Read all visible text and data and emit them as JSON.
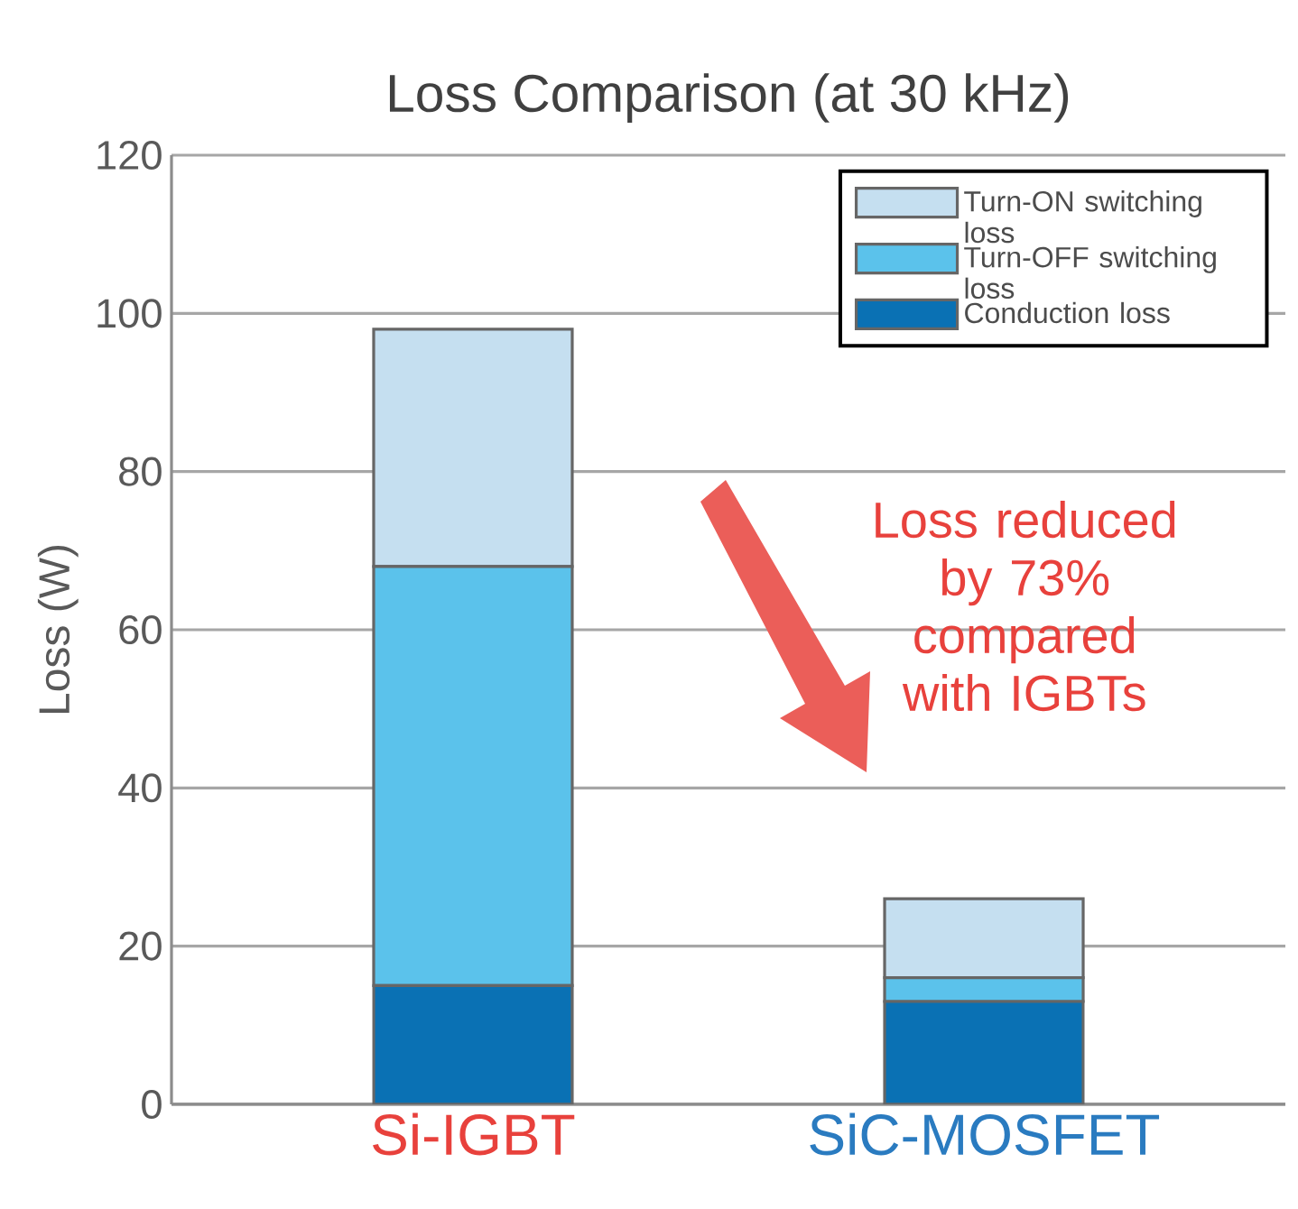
{
  "chart_data": {
    "type": "bar",
    "title": "Loss Comparison (at 30 kHz)",
    "ylabel": "Loss (W)",
    "categories": [
      "Si-IGBT",
      "SiC-MOSFET"
    ],
    "stacked": true,
    "series": [
      {
        "name": "Conduction loss",
        "color": "#0a71b4",
        "values": [
          15,
          13
        ]
      },
      {
        "name": "Turn-OFF switching loss",
        "color": "#5bc2eb",
        "values": [
          53,
          3
        ]
      },
      {
        "name": "Turn-ON switching loss",
        "color": "#c5dff0",
        "values": [
          30,
          10
        ]
      }
    ],
    "ylim": [
      0,
      120
    ],
    "yticks": [
      0,
      20,
      40,
      60,
      80,
      100,
      120
    ],
    "grid": "y",
    "legend": "top right",
    "annotations": [
      "Loss reduced by 73% compared with IGBTs"
    ]
  }
}
